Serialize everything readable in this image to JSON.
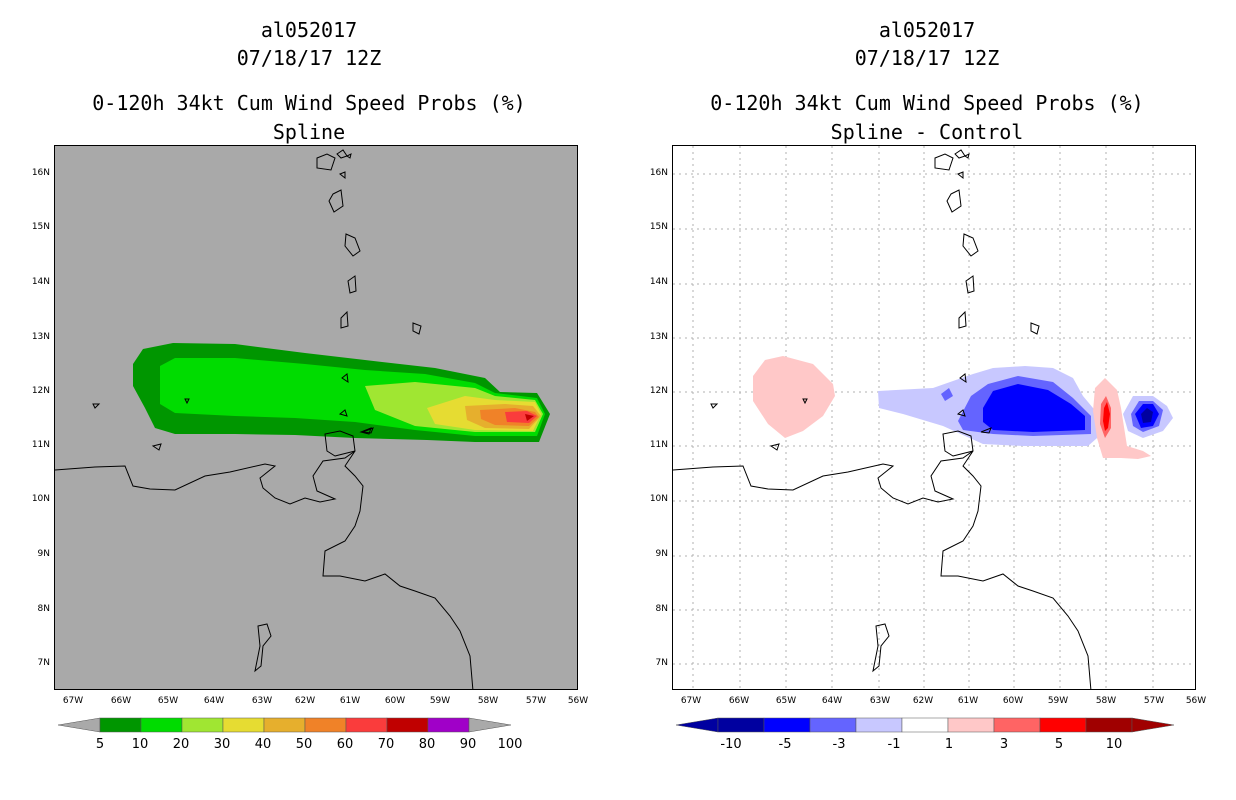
{
  "left": {
    "title": [
      "al052017",
      "07/18/17 12Z",
      "0-120h 34kt Cum Wind Speed Probs (%)",
      "Spline"
    ],
    "background": "#a9a9a9",
    "colorbar": {
      "colors": [
        "#009600",
        "#00dc00",
        "#a0e632",
        "#e6dc32",
        "#e6af2d",
        "#f08228",
        "#fa3c3c",
        "#c00000",
        "#a000c8"
      ],
      "end_color": "#a9a9a9",
      "labels": [
        "5",
        "10",
        "20",
        "30",
        "40",
        "50",
        "60",
        "70",
        "80",
        "90",
        "100"
      ]
    }
  },
  "right": {
    "title": [
      "al052017",
      "07/18/17 12Z",
      "0-120h 34kt Cum Wind Speed Probs (%)",
      "Spline - Control"
    ],
    "background": "#ffffff",
    "colorbar": {
      "colors": [
        "#0000a0",
        "#0000ff",
        "#6464ff",
        "#c8c8ff",
        "#ffffff",
        "#ffc8c8",
        "#ff6464",
        "#ff0000",
        "#a00000"
      ],
      "end_left": "#0000a0",
      "end_right": "#a00000",
      "labels": [
        "-10",
        "-5",
        "-3",
        "-1",
        "1",
        "3",
        "5",
        "10"
      ]
    }
  },
  "axes": {
    "lat_labels": [
      "16N",
      "15N",
      "14N",
      "13N",
      "12N",
      "11N",
      "10N",
      "9N",
      "8N",
      "7N"
    ],
    "lon_labels": [
      "67W",
      "66W",
      "65W",
      "64W",
      "63W",
      "62W",
      "61W",
      "60W",
      "59W",
      "58W",
      "57W",
      "56W"
    ],
    "lat_range": [
      6.5,
      16.5
    ],
    "lon_range": [
      -67.5,
      -56.0
    ]
  }
}
